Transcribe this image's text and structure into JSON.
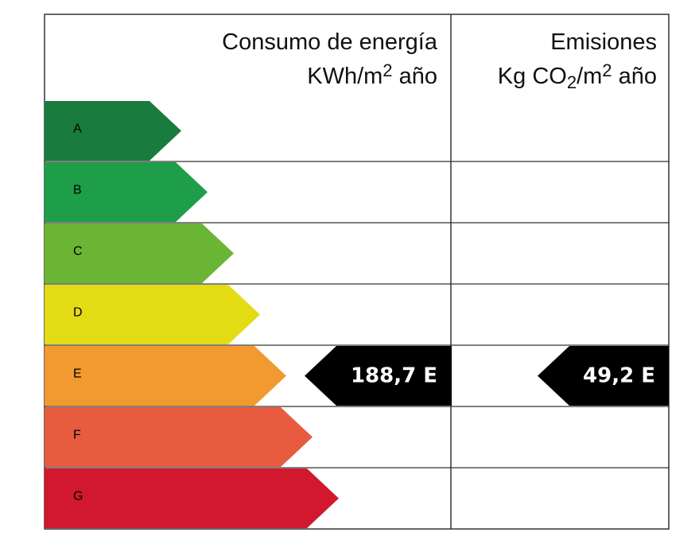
{
  "header": {
    "energy": {
      "line1": "Consumo de energía",
      "line2": [
        "KWh/m",
        "2",
        " año"
      ]
    },
    "emissions": {
      "line1": "Emisiones",
      "line2": [
        "Kg CO",
        "2",
        "/m",
        "2",
        " año"
      ]
    }
  },
  "ratings": [
    {
      "letter": "A",
      "color": "#197b3d"
    },
    {
      "letter": "B",
      "color": "#1e9e48"
    },
    {
      "letter": "C",
      "color": "#6ab533"
    },
    {
      "letter": "D",
      "color": "#e3dc15"
    },
    {
      "letter": "E",
      "color": "#f29a30"
    },
    {
      "letter": "F",
      "color": "#e75b3f"
    },
    {
      "letter": "G",
      "color": "#d2182e"
    }
  ],
  "energy_result": {
    "label": "188,7 E",
    "row": 4
  },
  "emissions_result": {
    "label": "49,2 E",
    "row": 4
  }
}
